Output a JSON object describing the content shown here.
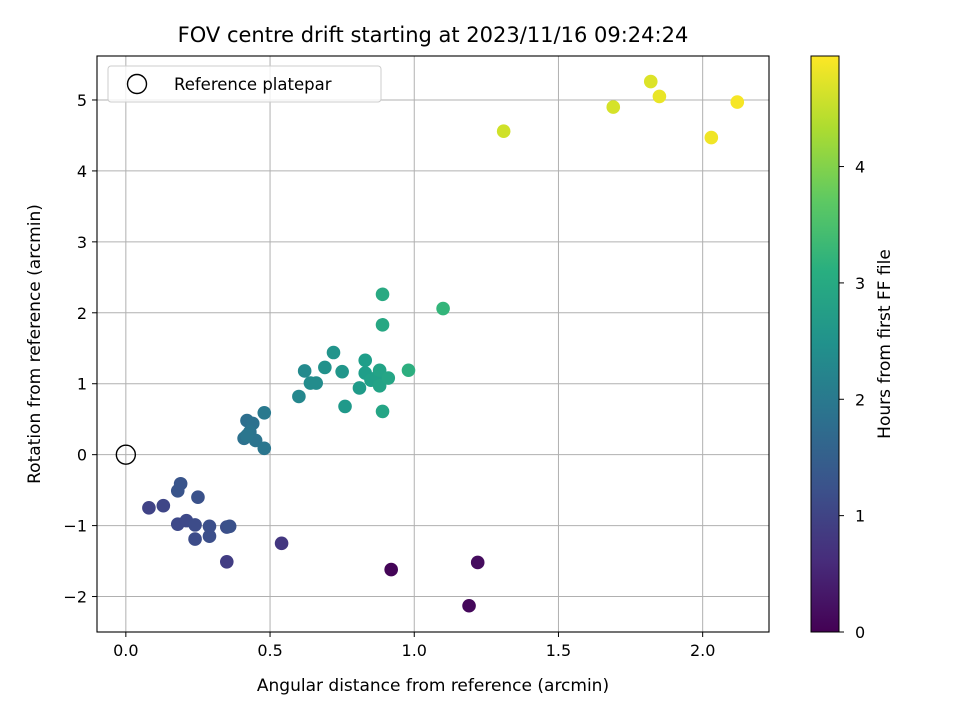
{
  "chart_data": {
    "type": "scatter",
    "title": "FOV centre drift starting at 2023/11/16 09:24:24",
    "xlabel": "Angular distance from reference (arcmin)",
    "ylabel": "Rotation from reference (arcmin)",
    "xlim": [
      -0.1,
      2.23
    ],
    "ylim": [
      -2.5,
      5.62
    ],
    "xticks": [
      0.0,
      0.5,
      1.0,
      1.5,
      2.0
    ],
    "xtick_labels": [
      "0.0",
      "0.5",
      "1.0",
      "1.5",
      "2.0"
    ],
    "yticks": [
      -2,
      -1,
      0,
      1,
      2,
      3,
      4,
      5
    ],
    "ytick_labels": [
      "−2",
      "−1",
      "0",
      "1",
      "2",
      "3",
      "4",
      "5"
    ],
    "grid": true,
    "legend": {
      "placement": "top-left",
      "entries": [
        "Reference platepar"
      ]
    },
    "reference_point": {
      "x": 0.0,
      "y": 0.0
    },
    "colorbar": {
      "label": "Hours from first FF file",
      "colormap": "viridis",
      "range": [
        0,
        4.95
      ],
      "ticks": [
        0,
        1,
        2,
        3,
        4
      ],
      "tick_labels": [
        "0",
        "1",
        "2",
        "3",
        "4"
      ]
    },
    "points": [
      {
        "x": 0.92,
        "y": -1.62,
        "c": 0.05
      },
      {
        "x": 1.19,
        "y": -2.13,
        "c": 0.1
      },
      {
        "x": 1.22,
        "y": -1.52,
        "c": 0.15
      },
      {
        "x": 0.54,
        "y": -1.25,
        "c": 0.8
      },
      {
        "x": 0.35,
        "y": -1.51,
        "c": 0.9
      },
      {
        "x": 0.08,
        "y": -0.75,
        "c": 1.0
      },
      {
        "x": 0.13,
        "y": -0.72,
        "c": 1.05
      },
      {
        "x": 0.18,
        "y": -0.98,
        "c": 1.1
      },
      {
        "x": 0.21,
        "y": -0.93,
        "c": 1.1
      },
      {
        "x": 0.24,
        "y": -0.99,
        "c": 1.15
      },
      {
        "x": 0.24,
        "y": -1.19,
        "c": 1.15
      },
      {
        "x": 0.29,
        "y": -1.01,
        "c": 1.2
      },
      {
        "x": 0.29,
        "y": -1.15,
        "c": 1.2
      },
      {
        "x": 0.35,
        "y": -1.02,
        "c": 1.2
      },
      {
        "x": 0.36,
        "y": -1.01,
        "c": 1.25
      },
      {
        "x": 0.25,
        "y": -0.6,
        "c": 1.25
      },
      {
        "x": 0.18,
        "y": -0.51,
        "c": 1.3
      },
      {
        "x": 0.19,
        "y": -0.41,
        "c": 1.3
      },
      {
        "x": 0.42,
        "y": 0.48,
        "c": 1.8
      },
      {
        "x": 0.44,
        "y": 0.44,
        "c": 1.85
      },
      {
        "x": 0.41,
        "y": 0.23,
        "c": 1.85
      },
      {
        "x": 0.43,
        "y": 0.32,
        "c": 1.9
      },
      {
        "x": 0.45,
        "y": 0.2,
        "c": 1.9
      },
      {
        "x": 0.48,
        "y": 0.09,
        "c": 1.95
      },
      {
        "x": 0.42,
        "y": 0.27,
        "c": 1.95
      },
      {
        "x": 0.48,
        "y": 0.59,
        "c": 2.0
      },
      {
        "x": 0.6,
        "y": 0.82,
        "c": 2.3
      },
      {
        "x": 0.62,
        "y": 1.18,
        "c": 2.35
      },
      {
        "x": 0.64,
        "y": 1.01,
        "c": 2.4
      },
      {
        "x": 0.66,
        "y": 1.01,
        "c": 2.4
      },
      {
        "x": 0.69,
        "y": 1.23,
        "c": 2.5
      },
      {
        "x": 0.72,
        "y": 1.44,
        "c": 2.55
      },
      {
        "x": 0.75,
        "y": 1.17,
        "c": 2.6
      },
      {
        "x": 0.76,
        "y": 0.68,
        "c": 2.65
      },
      {
        "x": 0.81,
        "y": 0.94,
        "c": 2.7
      },
      {
        "x": 0.83,
        "y": 1.33,
        "c": 2.75
      },
      {
        "x": 0.83,
        "y": 1.15,
        "c": 2.75
      },
      {
        "x": 0.85,
        "y": 1.05,
        "c": 2.8
      },
      {
        "x": 0.87,
        "y": 1.09,
        "c": 2.8
      },
      {
        "x": 0.88,
        "y": 1.19,
        "c": 2.85
      },
      {
        "x": 0.88,
        "y": 0.97,
        "c": 2.85
      },
      {
        "x": 0.89,
        "y": 0.61,
        "c": 2.9
      },
      {
        "x": 0.91,
        "y": 1.08,
        "c": 2.9
      },
      {
        "x": 0.89,
        "y": 1.83,
        "c": 2.95
      },
      {
        "x": 0.89,
        "y": 2.26,
        "c": 3.0
      },
      {
        "x": 0.98,
        "y": 1.19,
        "c": 3.1
      },
      {
        "x": 1.1,
        "y": 2.06,
        "c": 3.25
      },
      {
        "x": 1.31,
        "y": 4.56,
        "c": 4.6
      },
      {
        "x": 1.69,
        "y": 4.9,
        "c": 4.65
      },
      {
        "x": 1.82,
        "y": 5.26,
        "c": 4.7
      },
      {
        "x": 1.85,
        "y": 5.05,
        "c": 4.8
      },
      {
        "x": 2.03,
        "y": 4.47,
        "c": 4.85
      },
      {
        "x": 2.12,
        "y": 4.97,
        "c": 4.9
      }
    ]
  }
}
